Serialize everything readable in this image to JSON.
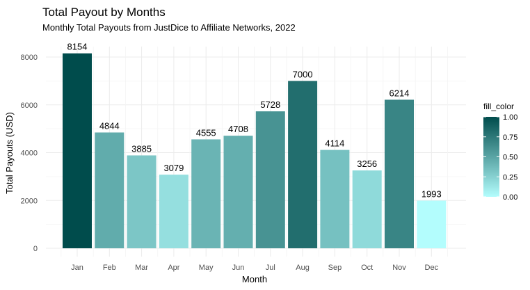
{
  "chart_data": {
    "type": "bar",
    "title": "Total Payout by Months",
    "subtitle": "Monthly Total Payouts from JustDice to Affiliate Networks, 2022",
    "xlabel": "Month",
    "ylabel": "Total Payouts (USD)",
    "categories": [
      "Jan",
      "Feb",
      "Mar",
      "Apr",
      "May",
      "Jun",
      "Jul",
      "Aug",
      "Sep",
      "Oct",
      "Nov",
      "Dec"
    ],
    "values": [
      8154,
      4844,
      3885,
      3079,
      4555,
      4708,
      5728,
      7000,
      4114,
      3256,
      6214,
      1993
    ],
    "fill_color": [
      1.0,
      0.46,
      0.31,
      0.17,
      0.41,
      0.44,
      0.6,
      0.81,
      0.34,
      0.2,
      0.68,
      0.0
    ],
    "data_labels": [
      "8154",
      "4844",
      "3885",
      "3079",
      "4555",
      "4708",
      "5728",
      "7000",
      "4114",
      "3256",
      "6214",
      "1993"
    ],
    "ylim": [
      0,
      8154
    ],
    "yticks": [
      0,
      2000,
      4000,
      6000,
      8000
    ],
    "ytick_labels": [
      "0",
      "2000",
      "4000",
      "6000",
      "8000"
    ],
    "grid": true,
    "legend": {
      "title": "fill_color",
      "position": "right",
      "ticks": [
        1.0,
        0.75,
        0.5,
        0.25,
        0.0
      ],
      "tick_labels": [
        "1.00",
        "0.75",
        "0.50",
        "0.25",
        "0.00"
      ],
      "color_low": "#b3fdfd",
      "color_high": "#004c4c"
    }
  }
}
